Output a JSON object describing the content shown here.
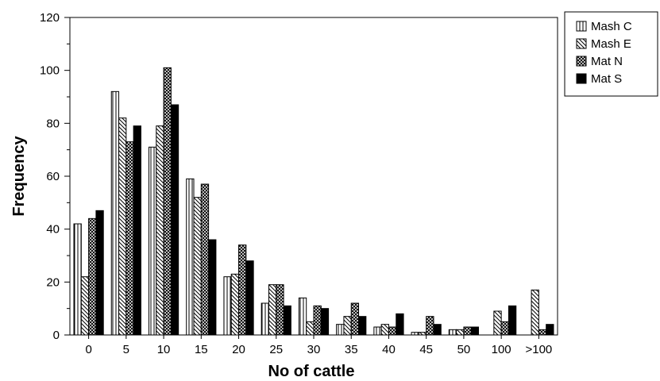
{
  "chart_data": {
    "type": "bar",
    "title": "",
    "xlabel": "No of cattle",
    "ylabel": "Frequency",
    "categories": [
      "0",
      "5",
      "10",
      "15",
      "20",
      "25",
      "30",
      "35",
      "40",
      "45",
      "50",
      "100",
      ">100"
    ],
    "ylim": [
      0,
      120
    ],
    "yticks": [
      0,
      20,
      40,
      60,
      80,
      100,
      120
    ],
    "grid": false,
    "legend_position": "right",
    "series": [
      {
        "name": "Mash C",
        "pattern": "vertical-lines",
        "values": [
          42,
          92,
          71,
          59,
          22,
          12,
          14,
          4,
          3,
          1,
          2,
          0,
          0
        ]
      },
      {
        "name": "Mash E",
        "pattern": "diagonal-lines",
        "values": [
          22,
          82,
          79,
          52,
          23,
          19,
          5,
          7,
          4,
          1,
          2,
          9,
          17
        ]
      },
      {
        "name": "Mat N",
        "pattern": "crosshatch",
        "values": [
          44,
          73,
          101,
          57,
          34,
          19,
          11,
          12,
          3,
          7,
          3,
          5,
          2
        ]
      },
      {
        "name": "Mat S",
        "pattern": "solid-black",
        "values": [
          47,
          79,
          87,
          36,
          28,
          11,
          10,
          7,
          8,
          4,
          3,
          11,
          4
        ]
      }
    ]
  }
}
